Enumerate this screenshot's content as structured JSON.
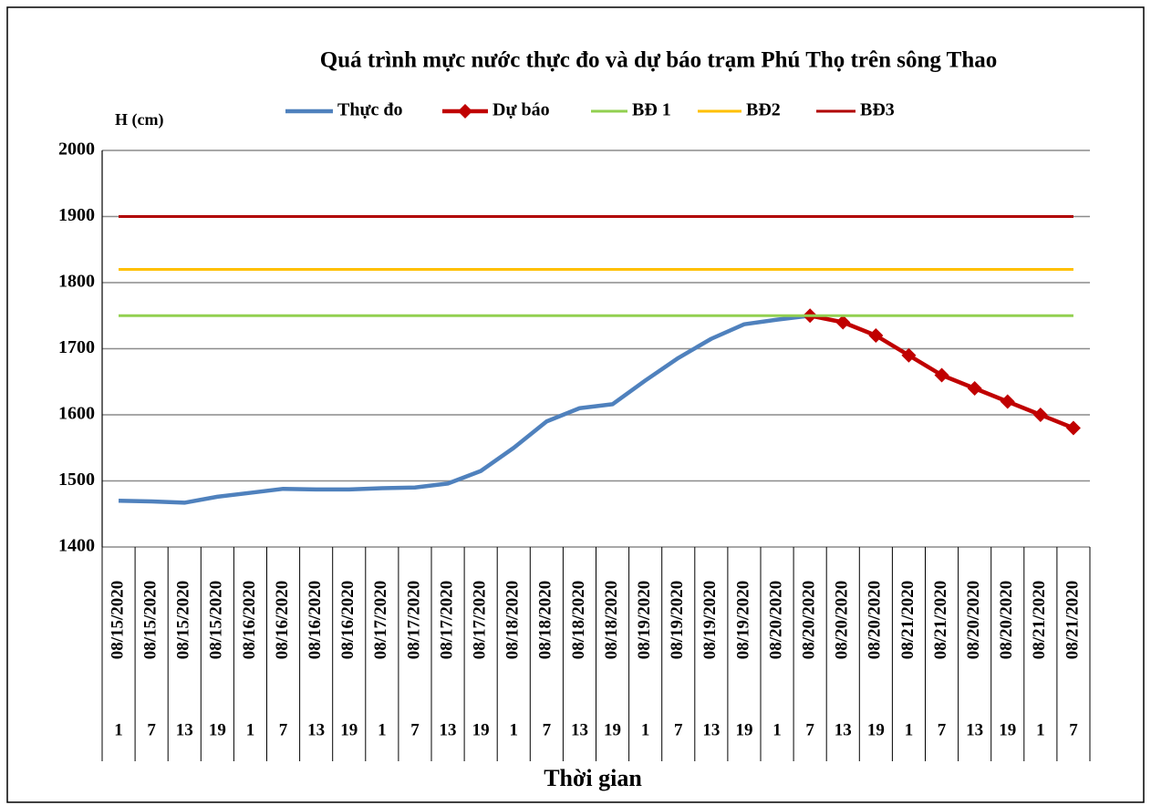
{
  "chart_data": {
    "type": "line",
    "title": "Quá trình mực nước thực đo và dự báo trạm Phú Thọ trên sông Thao",
    "y_label": "H (cm)",
    "x_label": "Thời gian",
    "categories": [
      "08/15/2020",
      "08/15/2020",
      "08/15/2020",
      "08/15/2020",
      "08/16/2020",
      "08/16/2020",
      "08/16/2020",
      "08/16/2020",
      "08/17/2020",
      "08/17/2020",
      "08/17/2020",
      "08/17/2020",
      "08/18/2020",
      "08/18/2020",
      "08/18/2020",
      "08/18/2020",
      "08/19/2020",
      "08/19/2020",
      "08/19/2020",
      "08/19/2020",
      "08/20/2020",
      "08/20/2020",
      "08/20/2020",
      "08/20/2020",
      "08/21/2020",
      "08/21/2020",
      "08/20/2020",
      "08/20/2020",
      "08/21/2020",
      "08/21/2020"
    ],
    "sub_categories": [
      1,
      7,
      13,
      19,
      1,
      7,
      13,
      19,
      1,
      7,
      13,
      19,
      1,
      7,
      13,
      19,
      1,
      7,
      13,
      19,
      1,
      7,
      13,
      19,
      1,
      7,
      13,
      19,
      1,
      7
    ],
    "series": [
      {
        "name": "Thực đo",
        "color": "#4f81bd",
        "values": [
          1470,
          1469,
          1467,
          1476,
          1482,
          1488,
          1487,
          1487,
          1489,
          1490,
          1496,
          1515,
          1550,
          1590,
          1610,
          1616,
          1652,
          1686,
          1715,
          1737,
          1744,
          1750,
          null,
          null,
          null,
          null,
          null,
          null,
          null,
          null
        ]
      },
      {
        "name": "Dự báo",
        "color": "#c00000",
        "marker": "diamond",
        "values": [
          null,
          null,
          null,
          null,
          null,
          null,
          null,
          null,
          null,
          null,
          null,
          null,
          null,
          null,
          null,
          null,
          null,
          null,
          null,
          null,
          null,
          1750,
          1740,
          1720,
          1690,
          1660,
          1640,
          1620,
          1600,
          1580
        ]
      },
      {
        "name": "BĐ 1",
        "color": "#92d050",
        "values": [
          1750,
          1750,
          1750,
          1750,
          1750,
          1750,
          1750,
          1750,
          1750,
          1750,
          1750,
          1750,
          1750,
          1750,
          1750,
          1750,
          1750,
          1750,
          1750,
          1750,
          1750,
          1750,
          1750,
          1750,
          1750,
          1750,
          1750,
          1750,
          1750,
          1750
        ]
      },
      {
        "name": "BĐ2",
        "color": "#ffc000",
        "values": [
          1820,
          1820,
          1820,
          1820,
          1820,
          1820,
          1820,
          1820,
          1820,
          1820,
          1820,
          1820,
          1820,
          1820,
          1820,
          1820,
          1820,
          1820,
          1820,
          1820,
          1820,
          1820,
          1820,
          1820,
          1820,
          1820,
          1820,
          1820,
          1820,
          1820
        ]
      },
      {
        "name": "BĐ3",
        "color": "#b00000",
        "values": [
          1900,
          1900,
          1900,
          1900,
          1900,
          1900,
          1900,
          1900,
          1900,
          1900,
          1900,
          1900,
          1900,
          1900,
          1900,
          1900,
          1900,
          1900,
          1900,
          1900,
          1900,
          1900,
          1900,
          1900,
          1900,
          1900,
          1900,
          1900,
          1900,
          1900
        ]
      }
    ],
    "ylim": [
      1400,
      2000
    ],
    "yticks": [
      1400,
      1500,
      1600,
      1700,
      1800,
      1900,
      2000
    ],
    "grid": true,
    "legend": "top"
  }
}
